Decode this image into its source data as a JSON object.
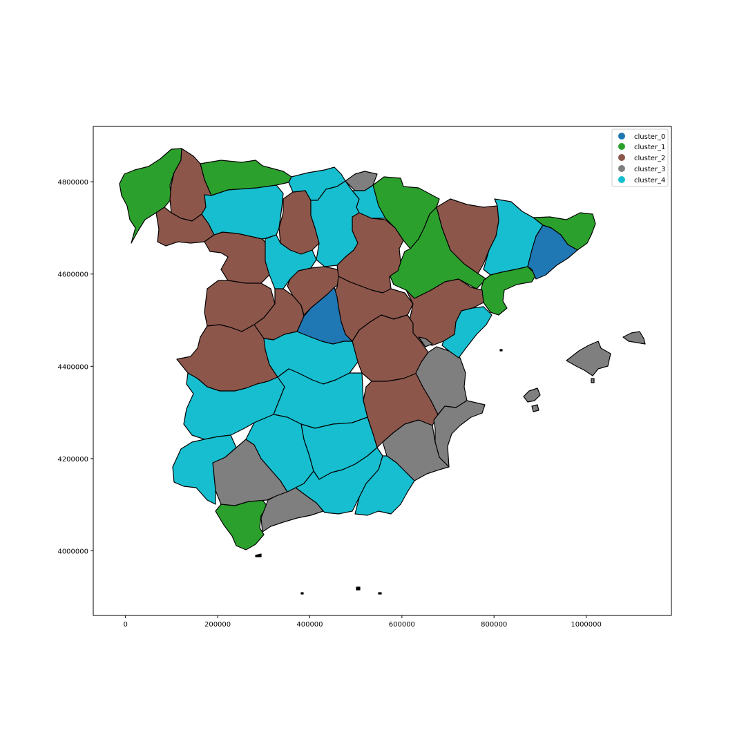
{
  "figure": {
    "x_ticks": [
      {
        "value": 0,
        "label": "0"
      },
      {
        "value": 200000,
        "label": "200000"
      },
      {
        "value": 400000,
        "label": "400000"
      },
      {
        "value": 600000,
        "label": "600000"
      },
      {
        "value": 800000,
        "label": "800000"
      },
      {
        "value": 1000000,
        "label": "1000000"
      }
    ],
    "y_ticks": [
      {
        "value": 4000000,
        "label": "4000000"
      },
      {
        "value": 4200000,
        "label": "4200000"
      },
      {
        "value": 4400000,
        "label": "4400000"
      },
      {
        "value": 4600000,
        "label": "4600000"
      },
      {
        "value": 4800000,
        "label": "4800000"
      }
    ],
    "x_range": [
      -70000,
      1185000
    ],
    "y_range": [
      3860000,
      4920000
    ]
  },
  "legend": {
    "position": "top-right",
    "items": [
      {
        "label": "cluster_0",
        "color": "#1f77b4"
      },
      {
        "label": "cluster_1",
        "color": "#2ca02c"
      },
      {
        "label": "cluster_2",
        "color": "#8c564b"
      },
      {
        "label": "cluster_3",
        "color": "#7f7f7f"
      },
      {
        "label": "cluster_4",
        "color": "#17becf"
      }
    ]
  }
}
